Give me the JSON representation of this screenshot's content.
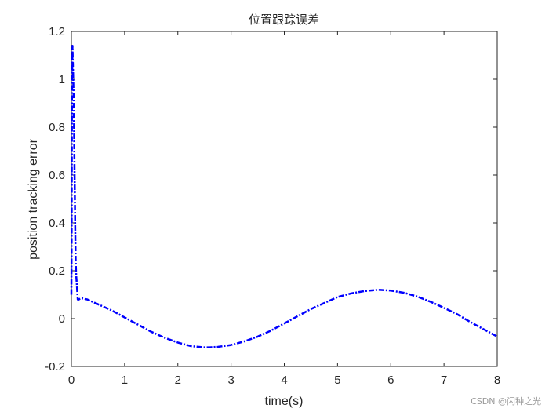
{
  "chart_data": {
    "type": "line",
    "title": "位置跟踪误差",
    "xlabel": "time(s)",
    "ylabel": "position tracking error",
    "xlim": [
      0,
      8
    ],
    "ylim": [
      -0.2,
      1.2
    ],
    "x_ticks": [
      "0",
      "1",
      "2",
      "3",
      "4",
      "5",
      "6",
      "7",
      "8"
    ],
    "y_ticks": [
      "-0.2",
      "0",
      "0.2",
      "0.4",
      "0.6",
      "0.8",
      "1",
      "1.2"
    ],
    "grid": false,
    "line_style": "dash-dot",
    "line_color": "#0000ff",
    "series": [
      {
        "x": [
          0,
          0.005,
          0.01,
          0.02,
          0.03,
          0.04,
          0.05,
          0.06,
          0.07,
          0.08,
          0.09,
          0.1,
          0.12,
          0.14,
          0.17,
          0.2,
          0.3,
          0.5,
          0.75,
          1.0,
          1.25,
          1.5,
          1.75,
          2.0,
          2.25,
          2.5,
          2.6,
          2.75,
          3.0,
          3.25,
          3.5,
          3.75,
          4.0,
          4.25,
          4.5,
          4.75,
          5.0,
          5.25,
          5.5,
          5.75,
          5.8,
          6.0,
          6.25,
          6.5,
          6.75,
          7.0,
          7.25,
          7.5,
          7.75,
          8.0
        ],
        "y": [
          0.1,
          0.3,
          0.9,
          1.14,
          1.05,
          0.95,
          0.8,
          0.6,
          0.4,
          0.25,
          0.18,
          0.15,
          0.08,
          0.08,
          0.085,
          0.085,
          0.08,
          0.06,
          0.035,
          0.005,
          -0.025,
          -0.055,
          -0.08,
          -0.1,
          -0.115,
          -0.12,
          -0.12,
          -0.118,
          -0.11,
          -0.095,
          -0.075,
          -0.05,
          -0.02,
          0.01,
          0.04,
          0.065,
          0.09,
          0.105,
          0.115,
          0.12,
          0.12,
          0.117,
          0.108,
          0.092,
          0.07,
          0.045,
          0.018,
          -0.015,
          -0.045,
          -0.075
        ]
      }
    ]
  },
  "watermark": "CSDN @闪种之光"
}
